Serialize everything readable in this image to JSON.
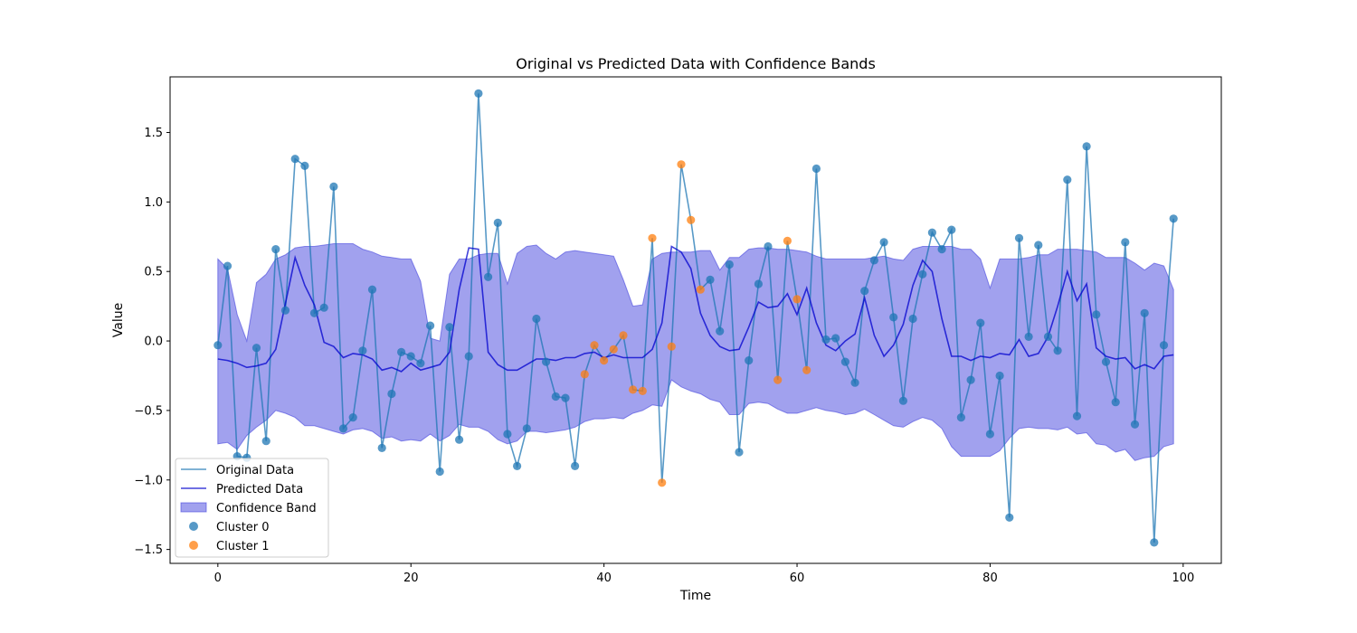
{
  "chart_data": {
    "type": "line",
    "title": "Original vs Predicted Data with Confidence Bands",
    "xlabel": "Time",
    "ylabel": "Value",
    "xlim": [
      -4.95,
      103.95
    ],
    "ylim": [
      -1.6,
      1.9
    ],
    "xticks": [
      0,
      20,
      40,
      60,
      80,
      100
    ],
    "yticks": [
      -1.5,
      -1.0,
      -0.5,
      0.0,
      0.5,
      1.0,
      1.5
    ],
    "grid": false,
    "legend_position": "lower-left",
    "x": [
      0,
      1,
      2,
      3,
      4,
      5,
      6,
      7,
      8,
      9,
      10,
      11,
      12,
      13,
      14,
      15,
      16,
      17,
      18,
      19,
      20,
      21,
      22,
      23,
      24,
      25,
      26,
      27,
      28,
      29,
      30,
      31,
      32,
      33,
      34,
      35,
      36,
      37,
      38,
      39,
      40,
      41,
      42,
      43,
      44,
      45,
      46,
      47,
      48,
      49,
      50,
      51,
      52,
      53,
      54,
      55,
      56,
      57,
      58,
      59,
      60,
      61,
      62,
      63,
      64,
      65,
      66,
      67,
      68,
      69,
      70,
      71,
      72,
      73,
      74,
      75,
      76,
      77,
      78,
      79,
      80,
      81,
      82,
      83,
      84,
      85,
      86,
      87,
      88,
      89,
      90,
      91,
      92,
      93,
      94,
      95,
      96,
      97,
      98,
      99
    ],
    "series": [
      {
        "name": "Original Data",
        "kind": "line",
        "color": "#1f77b4",
        "values": [
          -0.03,
          0.54,
          -0.83,
          -0.84,
          -0.05,
          -0.72,
          0.66,
          0.22,
          1.31,
          1.26,
          0.2,
          0.24,
          1.11,
          -0.63,
          -0.55,
          -0.07,
          0.37,
          -0.77,
          -0.38,
          -0.08,
          -0.11,
          -0.16,
          0.11,
          -0.94,
          0.1,
          -0.71,
          -0.11,
          1.78,
          0.46,
          0.85,
          -0.67,
          -0.9,
          -0.63,
          0.16,
          -0.15,
          -0.4,
          -0.41,
          -0.9,
          -0.24,
          -0.03,
          -0.14,
          -0.06,
          0.04,
          -0.35,
          -0.36,
          0.74,
          -1.02,
          -0.04,
          1.27,
          0.87,
          0.37,
          0.44,
          0.07,
          0.55,
          -0.8,
          -0.14,
          0.41,
          0.68,
          -0.28,
          0.72,
          0.3,
          -0.21,
          1.24,
          0.01,
          0.02,
          -0.15,
          -0.3,
          0.36,
          0.58,
          0.71,
          0.17,
          -0.43,
          0.16,
          0.48,
          0.78,
          0.66,
          0.8,
          -0.55,
          -0.28,
          0.13,
          -0.67,
          -0.25,
          -1.27,
          0.74,
          0.03,
          0.69,
          0.03,
          -0.07,
          1.16,
          -0.54,
          1.4,
          0.19,
          -0.15,
          -0.44,
          0.71,
          -0.6,
          0.2,
          -1.45,
          -0.03,
          0.88
        ]
      },
      {
        "name": "Predicted Data",
        "kind": "line",
        "color": "#0000cd",
        "values": [
          -0.13,
          -0.14,
          -0.16,
          -0.19,
          -0.18,
          -0.16,
          -0.06,
          0.27,
          0.6,
          0.4,
          0.26,
          -0.01,
          -0.04,
          -0.12,
          -0.09,
          -0.1,
          -0.13,
          -0.21,
          -0.19,
          -0.22,
          -0.16,
          -0.21,
          -0.19,
          -0.17,
          -0.08,
          0.37,
          0.67,
          0.66,
          -0.08,
          -0.17,
          -0.21,
          -0.21,
          -0.17,
          -0.13,
          -0.13,
          -0.14,
          -0.12,
          -0.12,
          -0.09,
          -0.08,
          -0.12,
          -0.1,
          -0.12,
          -0.12,
          -0.12,
          -0.06,
          0.13,
          0.68,
          0.64,
          0.52,
          0.2,
          0.04,
          -0.04,
          -0.07,
          -0.06,
          0.1,
          0.28,
          0.24,
          0.25,
          0.34,
          0.19,
          0.38,
          0.13,
          -0.03,
          -0.07,
          0.0,
          0.05,
          0.31,
          0.04,
          -0.11,
          -0.03,
          0.12,
          0.4,
          0.58,
          0.5,
          0.16,
          -0.11,
          -0.11,
          -0.14,
          -0.11,
          -0.12,
          -0.09,
          -0.1,
          0.01,
          -0.11,
          -0.09,
          0.03,
          0.25,
          0.5,
          0.29,
          0.41,
          -0.05,
          -0.11,
          -0.13,
          -0.12,
          -0.2,
          -0.17,
          -0.2,
          -0.11,
          -0.1
        ]
      },
      {
        "name": "Confidence Band",
        "kind": "band",
        "color": "#4444dd",
        "lower": [
          -0.74,
          -0.73,
          -0.78,
          -0.68,
          -0.62,
          -0.57,
          -0.5,
          -0.52,
          -0.55,
          -0.61,
          -0.61,
          -0.63,
          -0.65,
          -0.67,
          -0.64,
          -0.63,
          -0.65,
          -0.7,
          -0.69,
          -0.72,
          -0.71,
          -0.72,
          -0.67,
          -0.72,
          -0.68,
          -0.6,
          -0.62,
          -0.62,
          -0.65,
          -0.71,
          -0.74,
          -0.72,
          -0.65,
          -0.65,
          -0.66,
          -0.65,
          -0.64,
          -0.62,
          -0.58,
          -0.56,
          -0.56,
          -0.55,
          -0.56,
          -0.52,
          -0.5,
          -0.46,
          -0.47,
          -0.28,
          -0.33,
          -0.36,
          -0.38,
          -0.42,
          -0.44,
          -0.53,
          -0.53,
          -0.45,
          -0.44,
          -0.45,
          -0.49,
          -0.52,
          -0.52,
          -0.5,
          -0.48,
          -0.5,
          -0.51,
          -0.53,
          -0.52,
          -0.49,
          -0.53,
          -0.57,
          -0.61,
          -0.62,
          -0.58,
          -0.55,
          -0.57,
          -0.63,
          -0.76,
          -0.83,
          -0.83,
          -0.83,
          -0.83,
          -0.79,
          -0.7,
          -0.63,
          -0.62,
          -0.63,
          -0.63,
          -0.64,
          -0.62,
          -0.67,
          -0.66,
          -0.74,
          -0.75,
          -0.8,
          -0.78,
          -0.86,
          -0.84,
          -0.83,
          -0.76,
          -0.74
        ],
        "upper": [
          0.59,
          0.52,
          0.19,
          0.0,
          0.42,
          0.48,
          0.59,
          0.62,
          0.67,
          0.68,
          0.68,
          0.69,
          0.7,
          0.7,
          0.7,
          0.66,
          0.64,
          0.61,
          0.6,
          0.59,
          0.59,
          0.43,
          0.02,
          0.0,
          0.48,
          0.59,
          0.59,
          0.62,
          0.63,
          0.63,
          0.41,
          0.63,
          0.68,
          0.69,
          0.63,
          0.59,
          0.64,
          0.65,
          0.64,
          0.63,
          0.62,
          0.61,
          0.44,
          0.25,
          0.26,
          0.59,
          0.63,
          0.64,
          0.64,
          0.64,
          0.65,
          0.65,
          0.51,
          0.6,
          0.6,
          0.66,
          0.67,
          0.67,
          0.66,
          0.66,
          0.65,
          0.64,
          0.61,
          0.59,
          0.59,
          0.59,
          0.59,
          0.59,
          0.6,
          0.61,
          0.59,
          0.58,
          0.66,
          0.68,
          0.68,
          0.68,
          0.68,
          0.66,
          0.66,
          0.59,
          0.38,
          0.59,
          0.59,
          0.59,
          0.6,
          0.62,
          0.62,
          0.66,
          0.66,
          0.66,
          0.65,
          0.64,
          0.6,
          0.6,
          0.6,
          0.56,
          0.51,
          0.56,
          0.54,
          0.37
        ]
      },
      {
        "name": "Cluster 0",
        "kind": "scatter",
        "color": "#1f77b4",
        "x": [
          0,
          1,
          2,
          3,
          4,
          5,
          6,
          7,
          8,
          9,
          10,
          11,
          12,
          13,
          14,
          15,
          16,
          17,
          18,
          19,
          20,
          21,
          22,
          23,
          24,
          25,
          26,
          27,
          28,
          29,
          30,
          31,
          32,
          33,
          34,
          35,
          36,
          37,
          51,
          52,
          53,
          54,
          55,
          56,
          57,
          62,
          63,
          64,
          65,
          66,
          67,
          68,
          69,
          70,
          71,
          72,
          73,
          74,
          75,
          76,
          77,
          78,
          79,
          80,
          81,
          82,
          83,
          84,
          85,
          86,
          87,
          88,
          89,
          90,
          91,
          92,
          93,
          94,
          95,
          96,
          97,
          98,
          99
        ],
        "y": [
          -0.03,
          0.54,
          -0.83,
          -0.84,
          -0.05,
          -0.72,
          0.66,
          0.22,
          1.31,
          1.26,
          0.2,
          0.24,
          1.11,
          -0.63,
          -0.55,
          -0.07,
          0.37,
          -0.77,
          -0.38,
          -0.08,
          -0.11,
          -0.16,
          0.11,
          -0.94,
          0.1,
          -0.71,
          -0.11,
          1.78,
          0.46,
          0.85,
          -0.67,
          -0.9,
          -0.63,
          0.16,
          -0.15,
          -0.4,
          -0.41,
          -0.9,
          0.44,
          0.07,
          0.55,
          -0.8,
          -0.14,
          0.41,
          0.68,
          1.24,
          0.01,
          0.02,
          -0.15,
          -0.3,
          0.36,
          0.58,
          0.71,
          0.17,
          -0.43,
          0.16,
          0.48,
          0.78,
          0.66,
          0.8,
          -0.55,
          -0.28,
          0.13,
          -0.67,
          -0.25,
          -1.27,
          0.74,
          0.03,
          0.69,
          0.03,
          -0.07,
          1.16,
          -0.54,
          1.4,
          0.19,
          -0.15,
          -0.44,
          0.71,
          -0.6,
          0.2,
          -1.45,
          -0.03,
          0.88
        ]
      },
      {
        "name": "Cluster 1",
        "kind": "scatter",
        "color": "#ff7f0e",
        "x": [
          38,
          39,
          40,
          41,
          42,
          43,
          44,
          45,
          46,
          47,
          48,
          49,
          50,
          58,
          59,
          60,
          61
        ],
        "y": [
          -0.24,
          -0.03,
          -0.14,
          -0.06,
          0.04,
          -0.35,
          -0.36,
          0.74,
          -1.02,
          -0.04,
          1.27,
          0.87,
          0.37,
          -0.28,
          0.72,
          0.3,
          -0.21
        ]
      }
    ]
  }
}
